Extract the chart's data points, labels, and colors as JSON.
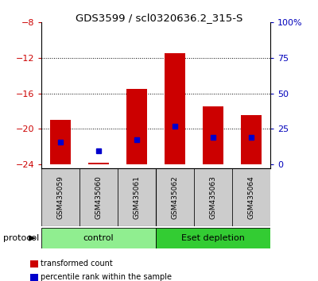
{
  "title": "GDS3599 / scl0320636.2_315-S",
  "samples": [
    "GSM435059",
    "GSM435060",
    "GSM435061",
    "GSM435062",
    "GSM435063",
    "GSM435064"
  ],
  "red_bar_top": [
    -19.0,
    -23.8,
    -15.5,
    -11.5,
    -17.5,
    -18.5
  ],
  "red_bar_bottom": -24.0,
  "blue_square_y": [
    -21.5,
    -22.5,
    -21.2,
    -19.7,
    -21.0,
    -21.0
  ],
  "ylim": [
    -24.5,
    -8
  ],
  "yticks_left": [
    -8,
    -12,
    -16,
    -20,
    -24
  ],
  "y_right_labels": [
    "0",
    "25",
    "50",
    "75",
    "100%"
  ],
  "groups": [
    {
      "name": "control",
      "indices": [
        0,
        1,
        2
      ],
      "color": "#90ee90"
    },
    {
      "name": "Eset depletion",
      "indices": [
        3,
        4,
        5
      ],
      "color": "#33cc33"
    }
  ],
  "protocol_label": "protocol",
  "bar_color": "#cc0000",
  "blue_color": "#0000cc",
  "bar_width": 0.55,
  "tick_color_left": "#cc0000",
  "tick_color_right": "#0000bb",
  "bg_xticklabel": "#cccccc",
  "legend_items": [
    {
      "color": "#cc0000",
      "label": "transformed count"
    },
    {
      "color": "#0000cc",
      "label": "percentile rank within the sample"
    }
  ]
}
